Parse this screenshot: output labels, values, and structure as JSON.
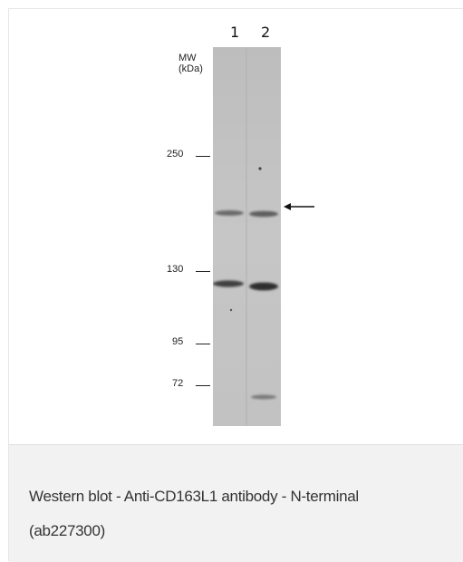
{
  "figure": {
    "lanes": [
      "1",
      "2"
    ],
    "mw_title_line1": "MW",
    "mw_title_line2": "(kDa)",
    "markers": [
      {
        "label": "250",
        "kda": 250
      },
      {
        "label": "130",
        "kda": 130
      },
      {
        "label": "95",
        "kda": 95
      },
      {
        "label": "72",
        "kda": 72
      }
    ],
    "target_arrow_glyph": "←",
    "colors": {
      "membrane": "#c4c4c4",
      "band": "#555555",
      "caption_bg": "#f2f2f2"
    }
  },
  "caption": {
    "line1": "Western blot - Anti-CD163L1 antibody - N-terminal",
    "line2": "(ab227300)"
  }
}
